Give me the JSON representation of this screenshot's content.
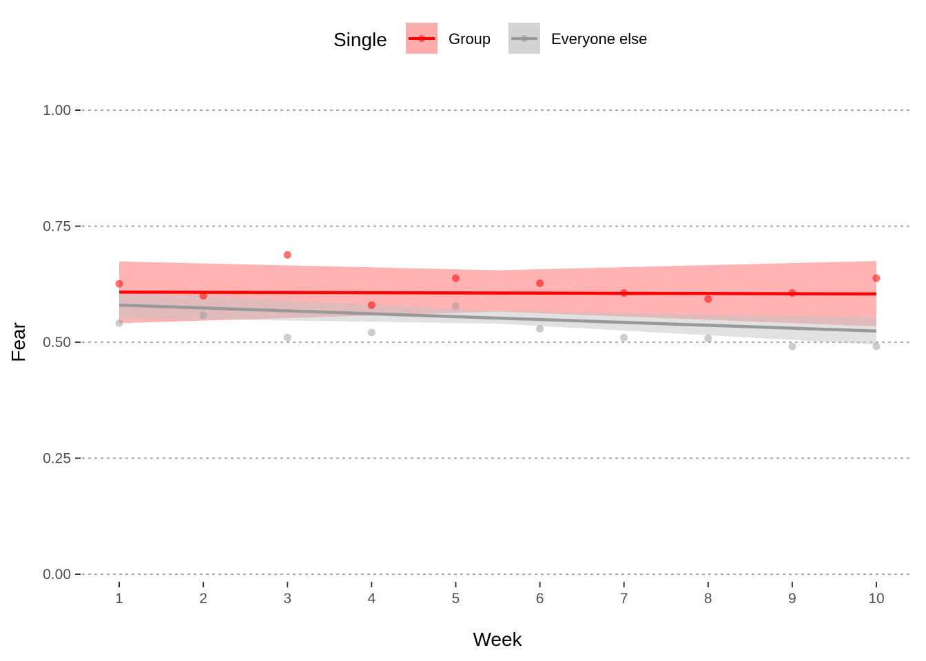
{
  "chart_data": {
    "type": "scatter",
    "xlabel": "Week",
    "ylabel": "Fear",
    "xlim": [
      1,
      10
    ],
    "ylim": [
      0,
      1
    ],
    "x_ticks": [
      1,
      2,
      3,
      4,
      5,
      6,
      7,
      8,
      9,
      10
    ],
    "x_tick_labels": [
      "1",
      "2",
      "3",
      "4",
      "5",
      "6",
      "7",
      "8",
      "9",
      "10"
    ],
    "y_ticks": [
      0,
      0.25,
      0.5,
      0.75,
      1
    ],
    "y_tick_labels": [
      "0.00",
      "0.25",
      "0.50",
      "0.75",
      "1.00"
    ],
    "grid": "horizontal dotted",
    "legend": {
      "title": "Single",
      "position": "top",
      "entries": [
        "Group",
        "Everyone else"
      ]
    },
    "series": [
      {
        "name": "Group",
        "color": "#ff0000",
        "band_color": "#ff8080",
        "points": [
          {
            "x": 1,
            "y": 0.626
          },
          {
            "x": 2,
            "y": 0.6
          },
          {
            "x": 3,
            "y": 0.688
          },
          {
            "x": 4,
            "y": 0.58
          },
          {
            "x": 5,
            "y": 0.638
          },
          {
            "x": 6,
            "y": 0.627
          },
          {
            "x": 7,
            "y": 0.606
          },
          {
            "x": 8,
            "y": 0.593
          },
          {
            "x": 9,
            "y": 0.606
          },
          {
            "x": 10,
            "y": 0.638
          }
        ],
        "trend": {
          "x": [
            1,
            10
          ],
          "y": [
            0.608,
            0.604
          ]
        },
        "band": {
          "x": [
            1,
            5.5,
            10
          ],
          "lower": [
            0.541,
            0.566,
            0.534
          ],
          "upper": [
            0.674,
            0.655,
            0.675
          ]
        }
      },
      {
        "name": "Everyone else",
        "color": "#999999",
        "band_color": "#c4c4c4",
        "points": [
          {
            "x": 1,
            "y": 0.541
          },
          {
            "x": 2,
            "y": 0.558
          },
          {
            "x": 3,
            "y": 0.51
          },
          {
            "x": 4,
            "y": 0.521
          },
          {
            "x": 5,
            "y": 0.578
          },
          {
            "x": 6,
            "y": 0.529
          },
          {
            "x": 7,
            "y": 0.51
          },
          {
            "x": 8,
            "y": 0.508
          },
          {
            "x": 9,
            "y": 0.491
          },
          {
            "x": 10,
            "y": 0.491
          }
        ],
        "trend": {
          "x": [
            1,
            10
          ],
          "y": [
            0.58,
            0.524
          ]
        },
        "band": {
          "x": [
            1,
            5.5,
            10
          ],
          "lower": [
            0.552,
            0.54,
            0.495
          ],
          "upper": [
            0.608,
            0.567,
            0.553
          ]
        }
      }
    ]
  }
}
